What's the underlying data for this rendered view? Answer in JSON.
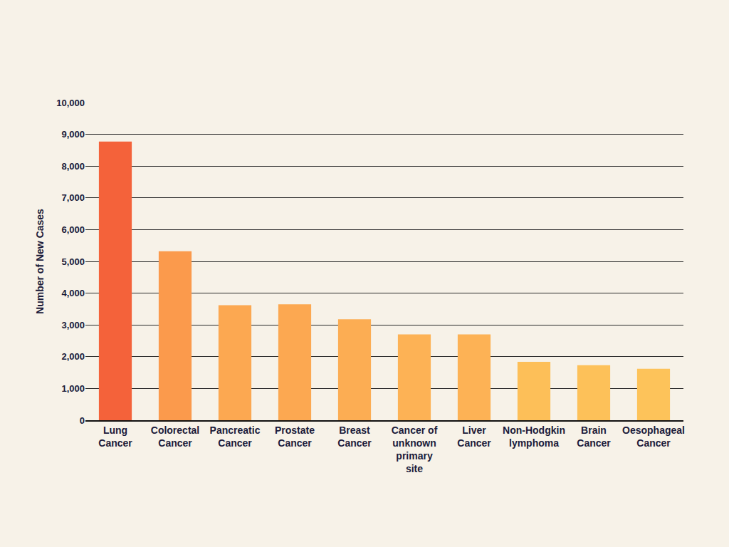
{
  "chart_data": {
    "type": "bar",
    "y_label": "Number of New Cases",
    "categories": [
      "Lung Cancer",
      "Colorectal Cancer",
      "Pancreatic Cancer",
      "Prostate Cancer",
      "Breast Cancer",
      "Cancer of unknown primary site",
      "Liver Cancer",
      "Non-Hodgkin lymphoma",
      "Brain Cancer",
      "Oesophageal Cancer"
    ],
    "values": [
      8770,
      5320,
      3620,
      3650,
      3180,
      2700,
      2700,
      1840,
      1730,
      1620
    ],
    "colors": [
      "#f4623a",
      "#fb9a4c",
      "#fca851",
      "#fca851",
      "#fcad53",
      "#fdb255",
      "#fdb255",
      "#fdbf58",
      "#fdc159",
      "#fdc35a"
    ],
    "ylim": [
      0,
      10000
    ],
    "yticks": [
      0,
      {
        "value": 1000,
        "label": "1,000"
      },
      {
        "value": 2000,
        "label": "2,000"
      },
      {
        "value": 3000,
        "label": "3,000"
      },
      {
        "value": 4000,
        "label": "4,000"
      },
      {
        "value": 5000,
        "label": "5,000"
      },
      {
        "value": 6000,
        "label": "6,000"
      },
      {
        "value": 7000,
        "label": "7,000"
      },
      {
        "value": 8000,
        "label": "8,000"
      },
      {
        "value": 9000,
        "label": "9,000"
      },
      {
        "value": 10000,
        "label": "10,000"
      }
    ],
    "grid": true
  }
}
